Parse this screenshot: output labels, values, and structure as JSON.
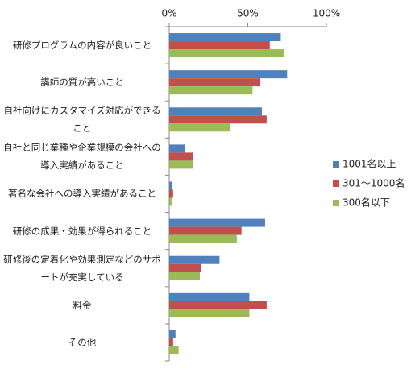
{
  "chart_data": {
    "type": "hbar",
    "categories": [
      "研修プログラムの内容が良いこと",
      "講師の質が高いこと",
      "自社向けにカスタマイズ対応ができること",
      "自社と同じ業種や企業規模の会社への導入実績があること",
      "著名な会社への導入実績があること",
      "研修の成果・効果が得られること",
      "研修後の定着化や効果測定などのサポートが充実している",
      "料金",
      "その他"
    ],
    "series": [
      {
        "name": "1001名以上",
        "color": "#4f81bd",
        "values": [
          71,
          75,
          59,
          10,
          2,
          61,
          32,
          51,
          4
        ]
      },
      {
        "name": "301～1000名",
        "color": "#c0504d",
        "values": [
          64,
          58,
          62,
          15,
          2.5,
          46,
          20.5,
          62,
          2.5
        ]
      },
      {
        "name": "300名以下",
        "color": "#9bbb59",
        "values": [
          73,
          53,
          39,
          15,
          1.5,
          43,
          19.5,
          51,
          6
        ]
      }
    ],
    "xlim": [
      0,
      100
    ],
    "xticks": [
      {
        "value": 0,
        "label": "0%"
      },
      {
        "value": 50,
        "label": "50%"
      },
      {
        "value": 100,
        "label": "100%"
      }
    ],
    "legend": "right"
  }
}
